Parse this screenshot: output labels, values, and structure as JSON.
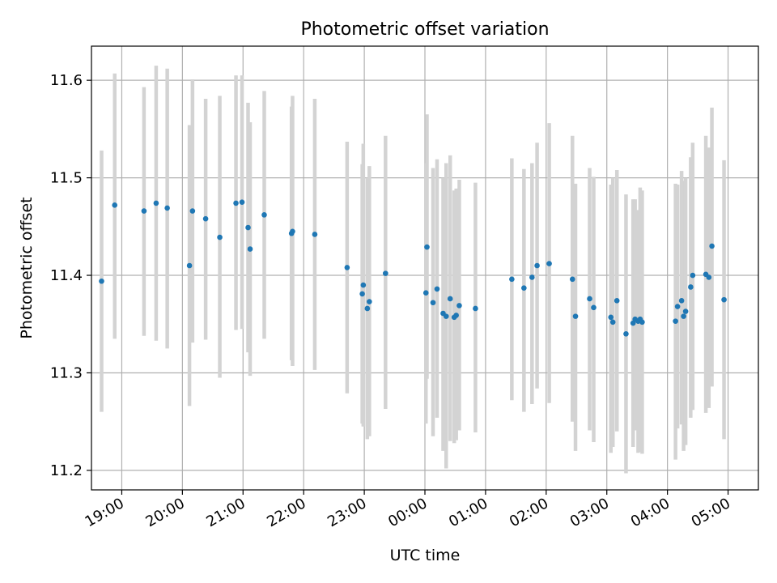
{
  "chart_data": {
    "type": "scatter",
    "title": "Photometric offset variation",
    "xlabel": "UTC time",
    "ylabel": "Photometric offset",
    "xlim": [
      "18:30",
      "05:30"
    ],
    "ylim": [
      11.18,
      11.635
    ],
    "grid": true,
    "x_ticks": [
      "19:00",
      "20:00",
      "21:00",
      "22:00",
      "23:00",
      "00:00",
      "01:00",
      "02:00",
      "03:00",
      "04:00",
      "05:00"
    ],
    "y_ticks": [
      11.2,
      11.3,
      11.4,
      11.5,
      11.6
    ],
    "colors": {
      "points": "#1f77b4",
      "errorbars": "#d3d3d3",
      "grid": "#b0b0b0",
      "axes": "#000000"
    },
    "series": [
      {
        "x": [
          "18:40",
          "18:53",
          "19:22",
          "19:34",
          "19:45",
          "20:07",
          "20:10",
          "20:23",
          "20:37",
          "20:53",
          "20:59",
          "21:05",
          "21:07",
          "21:21",
          "21:48",
          "21:49",
          "22:11",
          "22:43",
          "22:58",
          "22:59",
          "23:03",
          "23:05",
          "23:21",
          "00:01",
          "00:02",
          "00:08",
          "00:12",
          "00:18",
          "00:21",
          "00:25",
          "00:29",
          "00:31",
          "00:34",
          "00:50",
          "01:26",
          "01:38",
          "01:46",
          "01:51",
          "02:03",
          "02:26",
          "02:29",
          "02:43",
          "02:47",
          "03:04",
          "03:06",
          "03:10",
          "03:19",
          "03:26",
          "03:28",
          "03:31",
          "03:33",
          "03:35",
          "04:08",
          "04:10",
          "04:14",
          "04:16",
          "04:18",
          "04:23",
          "04:25",
          "04:38",
          "04:41",
          "04:44",
          "04:56"
        ],
        "y": [
          11.394,
          11.472,
          11.466,
          11.474,
          11.469,
          11.41,
          11.466,
          11.458,
          11.439,
          11.474,
          11.475,
          11.449,
          11.427,
          11.462,
          11.443,
          11.445,
          11.442,
          11.408,
          11.381,
          11.39,
          11.366,
          11.373,
          11.402,
          11.382,
          11.429,
          11.372,
          11.386,
          11.361,
          11.358,
          11.376,
          11.357,
          11.359,
          11.369,
          11.366,
          11.396,
          11.387,
          11.398,
          11.41,
          11.412,
          11.396,
          11.358,
          11.376,
          11.367,
          11.357,
          11.352,
          11.374,
          11.34,
          11.351,
          11.355,
          11.353,
          11.355,
          11.352,
          11.353,
          11.368,
          11.374,
          11.358,
          11.363,
          11.388,
          11.4,
          11.401,
          11.398,
          11.43,
          11.375
        ],
        "yerr_low": [
          11.26,
          11.335,
          11.338,
          11.333,
          11.325,
          11.266,
          11.331,
          11.334,
          11.295,
          11.344,
          11.345,
          11.321,
          11.297,
          11.335,
          11.313,
          11.307,
          11.303,
          11.279,
          11.248,
          11.245,
          11.232,
          11.235,
          11.263,
          11.248,
          11.294,
          11.235,
          11.254,
          11.22,
          11.202,
          11.23,
          11.228,
          11.231,
          11.241,
          11.239,
          11.272,
          11.26,
          11.268,
          11.284,
          11.269,
          11.25,
          11.22,
          11.241,
          11.229,
          11.218,
          11.224,
          11.24,
          11.197,
          11.224,
          11.241,
          11.218,
          11.219,
          11.217,
          11.211,
          11.243,
          11.247,
          11.22,
          11.226,
          11.254,
          11.262,
          11.259,
          11.264,
          11.286,
          11.232
        ],
        "yerr_high": [
          11.528,
          11.607,
          11.593,
          11.615,
          11.612,
          11.554,
          11.601,
          11.581,
          11.584,
          11.605,
          11.605,
          11.577,
          11.557,
          11.589,
          11.573,
          11.584,
          11.581,
          11.537,
          11.514,
          11.535,
          11.5,
          11.512,
          11.543,
          11.515,
          11.565,
          11.51,
          11.519,
          11.5,
          11.515,
          11.523,
          11.487,
          11.489,
          11.498,
          11.495,
          11.52,
          11.509,
          11.515,
          11.536,
          11.556,
          11.543,
          11.494,
          11.51,
          11.501,
          11.493,
          11.5,
          11.508,
          11.483,
          11.478,
          11.478,
          11.467,
          11.49,
          11.487,
          11.494,
          11.493,
          11.507,
          11.497,
          11.5,
          11.521,
          11.536,
          11.543,
          11.531,
          11.572,
          11.518
        ]
      }
    ]
  }
}
